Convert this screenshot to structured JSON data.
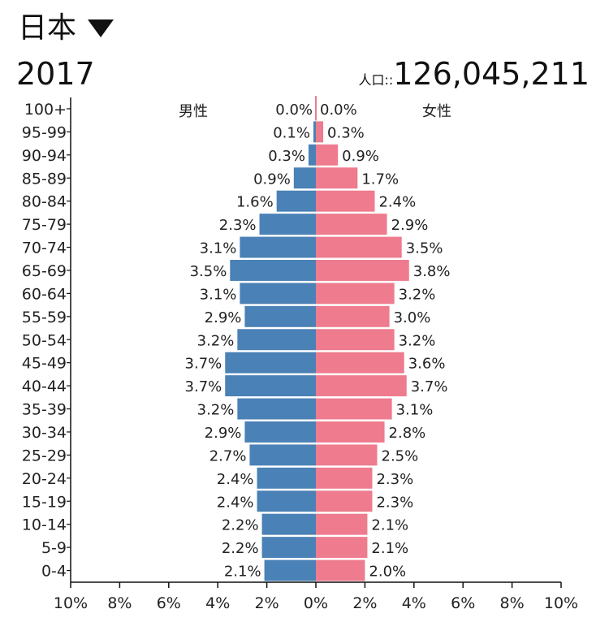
{
  "header": {
    "country": "日本",
    "dropdown_icon": "triangle-down-icon",
    "year": "2017",
    "population_label": "人口::",
    "population_value": "126,045,211"
  },
  "chart_data": {
    "type": "bar",
    "orientation": "horizontal-diverging",
    "categories": [
      "100+",
      "95-99",
      "90-94",
      "85-89",
      "80-84",
      "75-79",
      "70-74",
      "65-69",
      "60-64",
      "55-59",
      "50-54",
      "45-49",
      "40-44",
      "35-39",
      "30-34",
      "25-29",
      "20-24",
      "15-19",
      "10-14",
      "5-9",
      "0-4"
    ],
    "series": [
      {
        "name": "男性",
        "side": "left",
        "color": "#4a81b6",
        "values": [
          0.0,
          0.1,
          0.3,
          0.9,
          1.6,
          2.3,
          3.1,
          3.5,
          3.1,
          2.9,
          3.2,
          3.7,
          3.7,
          3.2,
          2.9,
          2.7,
          2.4,
          2.4,
          2.2,
          2.2,
          2.1
        ]
      },
      {
        "name": "女性",
        "side": "right",
        "color": "#ee7b8e",
        "values": [
          0.0,
          0.3,
          0.9,
          1.7,
          2.4,
          2.9,
          3.5,
          3.8,
          3.2,
          3.0,
          3.2,
          3.6,
          3.7,
          3.1,
          2.8,
          2.5,
          2.3,
          2.3,
          2.1,
          2.1,
          2.0
        ]
      }
    ],
    "value_unit": "%",
    "xlim": [
      -10,
      10
    ],
    "x_ticks": [
      "10%",
      "8%",
      "6%",
      "4%",
      "2%",
      "0%",
      "2%",
      "4%",
      "6%",
      "8%",
      "10%"
    ],
    "grid": false
  }
}
